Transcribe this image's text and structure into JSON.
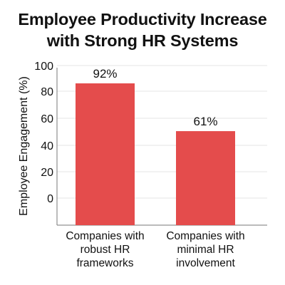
{
  "colors": {
    "bar": "#e44c4c",
    "grid": "#e6e6e6",
    "axis": "#777777",
    "text": "#111111"
  },
  "chart_data": {
    "type": "bar",
    "title_lines": [
      "Employee Productivity Increase",
      "with Strong HR Systems"
    ],
    "ylabel": "Employee Engagement (%)",
    "xlabel": "",
    "ylim": [
      0,
      100
    ],
    "yticks": [
      "100",
      "80",
      "60",
      "40",
      "20",
      "0"
    ],
    "grid": true,
    "categories": [
      [
        "Companies with",
        "robust HR",
        "frameworks"
      ],
      [
        "Companies with",
        "minimal HR",
        "involvement"
      ]
    ],
    "values": [
      92,
      61
    ],
    "data_labels": [
      "92%",
      "61%"
    ]
  }
}
